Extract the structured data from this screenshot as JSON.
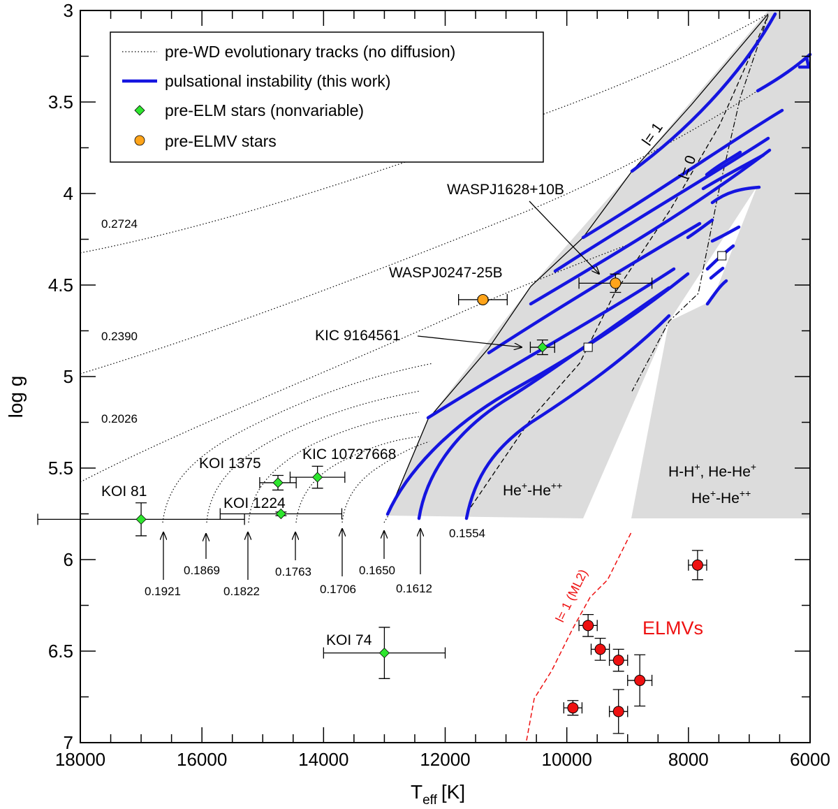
{
  "chart_data": {
    "type": "scatter",
    "xlabel": "T",
    "xlabel_sub": "eff",
    "xlabel_unit": "[K]",
    "ylabel": "log g",
    "xlim": [
      18000,
      6000
    ],
    "ylim": [
      3,
      7
    ],
    "x_ticks": [
      {
        "value": 18000,
        "label": "18000"
      },
      {
        "value": 16000,
        "label": "16000"
      },
      {
        "value": 14000,
        "label": "14000"
      },
      {
        "value": 12000,
        "label": "12000"
      },
      {
        "value": 10000,
        "label": "10000"
      },
      {
        "value": 8000,
        "label": "8000"
      },
      {
        "value": 6000,
        "label": "6000"
      }
    ],
    "y_ticks": [
      {
        "value": 3,
        "label": "3"
      },
      {
        "value": 3.5,
        "label": "3.5"
      },
      {
        "value": 4,
        "label": "4"
      },
      {
        "value": 4.5,
        "label": "4.5"
      },
      {
        "value": 5,
        "label": "5"
      },
      {
        "value": 5.5,
        "label": "5.5"
      },
      {
        "value": 6,
        "label": "6"
      },
      {
        "value": 6.5,
        "label": "6.5"
      },
      {
        "value": 7,
        "label": "7"
      }
    ],
    "legend": {
      "placement": "top-left",
      "entries": [
        {
          "label": "pre-WD evolutionary tracks (no diffusion)",
          "style": "dotted"
        },
        {
          "label": "pulsational instability (this work)",
          "style": "blue-line"
        },
        {
          "label": "pre-ELM stars (nonvariable)",
          "style": "green-diamond"
        },
        {
          "label": "pre-ELMV stars",
          "style": "orange-circle"
        }
      ]
    },
    "track_masses_upper": [
      {
        "mass": "0.2724",
        "logg_at_18000": 4.32
      },
      {
        "mass": "0.2390",
        "logg_at_18000": 4.98
      },
      {
        "mass": "0.2026",
        "logg_at_18000": 5.59
      }
    ],
    "track_masses_lower": [
      {
        "mass": "0.1921",
        "teff": 16650
      },
      {
        "mass": "0.1869",
        "teff": 15900
      },
      {
        "mass": "0.1822",
        "teff": 15200
      },
      {
        "mass": "0.1763",
        "teff": 14450
      },
      {
        "mass": "0.1706",
        "teff": 13700
      },
      {
        "mass": "0.1650",
        "teff": 12950
      },
      {
        "mass": "0.1612",
        "teff": 12350
      },
      {
        "mass": "0.1554",
        "teff": 11650
      }
    ],
    "pre_elm_stars": [
      {
        "name": "KOI 81",
        "teff": 17000,
        "logg": 5.78,
        "teff_err": 1700,
        "logg_err": 0.09
      },
      {
        "name": "KOI 1224",
        "teff": 14700,
        "logg": 5.75,
        "teff_err": 1000,
        "logg_err": 0.01
      },
      {
        "name": "KOI 1375",
        "teff": 14750,
        "logg": 5.58,
        "teff_err": 300,
        "logg_err": 0.04
      },
      {
        "name": "KIC 10727668",
        "teff": 14100,
        "logg": 5.55,
        "teff_err": 450,
        "logg_err": 0.06
      },
      {
        "name": "KIC 9164561",
        "teff": 10400,
        "logg": 4.84,
        "teff_err": 200,
        "logg_err": 0.04
      },
      {
        "name": "KOI 74",
        "teff": 13000,
        "logg": 6.51,
        "teff_err": 1000,
        "logg_err": 0.14
      }
    ],
    "pre_elmv_stars": [
      {
        "name": "WASPJ0247-25B",
        "teff": 11380,
        "logg": 4.58,
        "teff_err": 400,
        "logg_err": 0.01
      },
      {
        "name": "WASPJ1628+10B",
        "teff": 9200,
        "logg": 4.49,
        "teff_err": 600,
        "logg_err": 0.05
      }
    ],
    "elmv_stars": [
      {
        "teff": 7850,
        "logg": 6.03,
        "teff_err": 150,
        "logg_err": 0.08
      },
      {
        "teff": 9650,
        "logg": 6.36,
        "teff_err": 150,
        "logg_err": 0.06
      },
      {
        "teff": 9450,
        "logg": 6.49,
        "teff_err": 150,
        "logg_err": 0.06
      },
      {
        "teff": 9150,
        "logg": 6.55,
        "teff_err": 150,
        "logg_err": 0.06
      },
      {
        "teff": 8800,
        "logg": 6.66,
        "teff_err": 200,
        "logg_err": 0.14
      },
      {
        "teff": 9900,
        "logg": 6.81,
        "teff_err": 150,
        "logg_err": 0.04
      },
      {
        "teff": 9150,
        "logg": 6.83,
        "teff_err": 150,
        "logg_err": 0.12
      }
    ],
    "open_squares": [
      {
        "teff": 9650,
        "logg": 4.84
      },
      {
        "teff": 7450,
        "logg": 4.34
      }
    ],
    "annotations": {
      "l1": "l= 1",
      "l0": "l= 0",
      "he_region": "He",
      "h_region_line1": "H-H",
      "h_region_line1b": ", He-He",
      "h_region_line2": "He",
      "sup_plus": "+",
      "sup_plusplus": "++",
      "sep": "-",
      "ml2": "l= 1 (ML2)",
      "elmvs": "ELMVs"
    }
  }
}
